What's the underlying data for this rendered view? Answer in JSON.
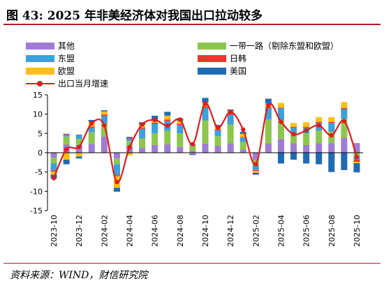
{
  "header": {
    "title": "图 43:  2025 年非美经济体对我国出口拉动较多"
  },
  "source": "资料来源：WIND，财信研究院",
  "chart_data": {
    "type": "bar",
    "stacked": true,
    "categories": [
      "2023-10",
      "2023-11",
      "2023-12",
      "2024-01",
      "2024-02",
      "2024-03",
      "2024-04",
      "2024-05",
      "2024-06",
      "2024-07",
      "2024-08",
      "2024-09",
      "2024-10",
      "2024-11",
      "2024-12",
      "2025-01",
      "2025-02",
      "2025-03",
      "2025-04",
      "2025-05",
      "2025-06",
      "2025-07",
      "2025-08",
      "2025-09",
      "2025-10"
    ],
    "x_tick_labels": [
      "2023-10",
      "2023-12",
      "2024-02",
      "2024-04",
      "2024-06",
      "2024-08",
      "2024-10",
      "2024-12",
      "2025-02",
      "2025-04",
      "2025-06",
      "2025-08",
      "2025-10"
    ],
    "ylim": [
      -15,
      15
    ],
    "yticks": [
      -15,
      -10,
      -5,
      0,
      5,
      10,
      15
    ],
    "grid": false,
    "legend_position": "top",
    "series": [
      {
        "name": "其他",
        "color": "#a07cd4",
        "values": [
          -1.3,
          2.2,
          2.0,
          2.3,
          4.2,
          -1.5,
          1.5,
          1.2,
          2.0,
          2.2,
          1.5,
          0.5,
          2.4,
          1.8,
          2.5,
          0.8,
          -1.8,
          2.5,
          3.5,
          2.5,
          2.0,
          2.5,
          2.5,
          3.8,
          2.5
        ]
      },
      {
        "name": "一带一路（剔除东盟和欧盟）",
        "color": "#8cc64f",
        "values": [
          -1.5,
          2.0,
          1.6,
          3.0,
          3.5,
          -1.5,
          1.6,
          2.5,
          3.0,
          3.5,
          3.5,
          1.5,
          6.0,
          2.5,
          4.8,
          2.0,
          -1.5,
          6.2,
          5.0,
          2.5,
          3.0,
          3.2,
          3.0,
          5.0,
          -1.0
        ]
      },
      {
        "name": "东盟",
        "color": "#3ba0dc",
        "values": [
          -1.8,
          0.5,
          1.0,
          1.2,
          1.8,
          -2.8,
          0.6,
          2.5,
          2.5,
          2.5,
          2.2,
          0.3,
          3.2,
          1.5,
          2.5,
          1.2,
          -1.2,
          2.8,
          3.0,
          1.5,
          1.5,
          2.0,
          2.2,
          2.5,
          -0.8
        ]
      },
      {
        "name": "日韩",
        "color": "#e8382e",
        "values": [
          -0.3,
          0.2,
          0.1,
          0.3,
          0.4,
          -0.3,
          0.1,
          0.3,
          0.3,
          0.4,
          0.3,
          0.0,
          0.4,
          0.3,
          0.4,
          0.1,
          -0.2,
          0.3,
          0.2,
          0.2,
          0.2,
          0.3,
          0.3,
          0.3,
          -0.6
        ]
      },
      {
        "name": "欧盟",
        "color": "#fdbf12",
        "values": [
          -0.8,
          -1.8,
          -1.0,
          1.2,
          0.8,
          -3.0,
          -0.7,
          0.8,
          0.8,
          1.0,
          0.8,
          -0.3,
          1.0,
          0.6,
          0.6,
          0.8,
          -0.5,
          1.0,
          1.2,
          1.0,
          1.2,
          1.2,
          1.2,
          1.5,
          -0.3
        ]
      },
      {
        "name": "美国",
        "color": "#1f6bb3",
        "values": [
          -1.0,
          -1.2,
          -0.5,
          0.5,
          0.3,
          -1.0,
          0.3,
          0.6,
          1.0,
          1.0,
          0.6,
          -0.3,
          1.2,
          0.5,
          0.4,
          0.5,
          -0.5,
          1.2,
          -2.8,
          -1.8,
          -2.8,
          -3.0,
          -5.0,
          -4.5,
          -2.4
        ]
      }
    ],
    "line": {
      "name": "出口当月增速",
      "color": "#e41a1c",
      "values": [
        -6.6,
        0.9,
        1.5,
        7.6,
        7.1,
        -7.6,
        1.4,
        7.3,
        8.5,
        7.0,
        8.6,
        2.2,
        12.7,
        6.5,
        10.6,
        6.0,
        -3.0,
        12.3,
        8.0,
        4.8,
        5.8,
        7.1,
        4.5,
        8.2,
        -1.1
      ]
    }
  }
}
